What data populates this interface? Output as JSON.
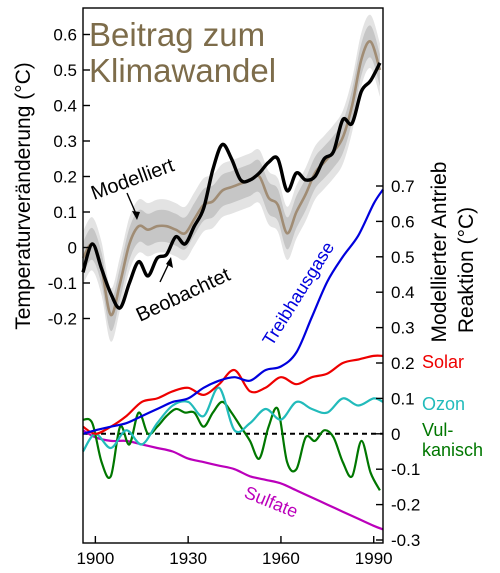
{
  "chart_data": [
    {
      "type": "line",
      "title_lines": [
        "Beitrag zum",
        "Klimawandel"
      ],
      "title_color": "#7d6c4a",
      "ylabel": "Temperaturveränderung (°C)",
      "yticks": [
        "0.6",
        "0.5",
        "0.4",
        "0.3",
        "0.2",
        "0.1",
        "0",
        "-0.1",
        "-0.2"
      ],
      "ylim": [
        -0.25,
        0.65
      ],
      "xlim": [
        1896,
        1993
      ],
      "annotations": [
        "Modelliert",
        "Beobachtet"
      ],
      "series": [
        {
          "name": "Modelliert",
          "color": "#a08c74",
          "x": [
            1896,
            1899,
            1902,
            1905,
            1908,
            1911,
            1914,
            1917,
            1920,
            1923,
            1926,
            1929,
            1932,
            1935,
            1938,
            1941,
            1944,
            1947,
            1950,
            1953,
            1956,
            1959,
            1962,
            1965,
            1968,
            1971,
            1974,
            1977,
            1980,
            1983,
            1986,
            1989,
            1992
          ],
          "y": [
            -0.03,
            0.01,
            -0.06,
            -0.19,
            -0.1,
            0.01,
            0.06,
            0.05,
            0.06,
            0.06,
            0.05,
            0.04,
            0.08,
            0.12,
            0.13,
            0.16,
            0.17,
            0.18,
            0.19,
            0.2,
            0.14,
            0.12,
            0.04,
            0.1,
            0.15,
            0.21,
            0.24,
            0.27,
            0.31,
            0.4,
            0.53,
            0.58,
            0.5
          ]
        },
        {
          "name": "Beobachtet",
          "color": "#000000",
          "x": [
            1896,
            1899,
            1902,
            1905,
            1908,
            1911,
            1914,
            1917,
            1920,
            1923,
            1926,
            1929,
            1932,
            1935,
            1938,
            1941,
            1944,
            1947,
            1950,
            1953,
            1956,
            1959,
            1962,
            1965,
            1968,
            1971,
            1974,
            1977,
            1980,
            1983,
            1986,
            1989,
            1992
          ],
          "y": [
            -0.07,
            0.01,
            -0.06,
            -0.13,
            -0.17,
            -0.1,
            -0.04,
            -0.08,
            -0.03,
            -0.02,
            0.03,
            0.01,
            0.06,
            0.11,
            0.22,
            0.29,
            0.25,
            0.19,
            0.19,
            0.21,
            0.24,
            0.25,
            0.16,
            0.21,
            0.19,
            0.2,
            0.25,
            0.27,
            0.36,
            0.35,
            0.44,
            0.47,
            0.52
          ]
        }
      ]
    },
    {
      "type": "line",
      "ylabel_lines": [
        "Modellierter Antrieb",
        "Reaktion (°C)"
      ],
      "yticks": [
        "0.7",
        "0.6",
        "0.5",
        "0.4",
        "0.3",
        "0.2",
        "0.1",
        "0",
        "-0.1",
        "-0.2",
        "-0.3"
      ],
      "ylim": [
        -0.3,
        0.72
      ],
      "xlim": [
        1896,
        1993
      ],
      "xticks": [
        "1900",
        "1930",
        "1960",
        "1990"
      ],
      "zero_line": "dashed",
      "series": [
        {
          "name": "Treibhausgase",
          "color": "#0000dd",
          "x": [
            1896,
            1900,
            1905,
            1910,
            1915,
            1920,
            1925,
            1930,
            1935,
            1940,
            1945,
            1950,
            1955,
            1960,
            1965,
            1970,
            1975,
            1980,
            1985,
            1990,
            1993
          ],
          "y": [
            0.0,
            0.01,
            0.02,
            0.03,
            0.05,
            0.07,
            0.09,
            0.1,
            0.13,
            0.15,
            0.16,
            0.15,
            0.18,
            0.19,
            0.23,
            0.33,
            0.43,
            0.5,
            0.56,
            0.65,
            0.69
          ]
        },
        {
          "name": "Solar",
          "color": "#ee0000",
          "x": [
            1896,
            1900,
            1905,
            1910,
            1915,
            1920,
            1925,
            1930,
            1935,
            1940,
            1945,
            1950,
            1955,
            1960,
            1965,
            1970,
            1975,
            1980,
            1985,
            1990,
            1993
          ],
          "y": [
            0.02,
            0.0,
            0.02,
            0.05,
            0.09,
            0.1,
            0.12,
            0.13,
            0.11,
            0.14,
            0.18,
            0.12,
            0.13,
            0.16,
            0.14,
            0.16,
            0.17,
            0.2,
            0.21,
            0.22,
            0.22
          ]
        },
        {
          "name": "Ozon",
          "color": "#22bbbb",
          "x": [
            1896,
            1900,
            1905,
            1910,
            1915,
            1920,
            1925,
            1930,
            1935,
            1940,
            1945,
            1950,
            1955,
            1960,
            1965,
            1970,
            1975,
            1980,
            1985,
            1990,
            1993
          ],
          "y": [
            -0.05,
            0.0,
            -0.04,
            0.01,
            -0.03,
            0.03,
            0.08,
            0.09,
            0.05,
            0.13,
            0.01,
            0.03,
            0.07,
            0.04,
            0.09,
            0.07,
            0.06,
            0.1,
            0.08,
            0.1,
            0.09
          ]
        },
        {
          "name": "Vulkanisch",
          "color": "#007700",
          "x": [
            1896,
            1899,
            1902,
            1905,
            1908,
            1911,
            1914,
            1917,
            1920,
            1923,
            1926,
            1929,
            1932,
            1935,
            1938,
            1941,
            1944,
            1947,
            1950,
            1953,
            1956,
            1959,
            1962,
            1965,
            1968,
            1971,
            1974,
            1977,
            1980,
            1983,
            1986,
            1989,
            1992
          ],
          "y": [
            0.04,
            0.03,
            -0.08,
            -0.12,
            0.02,
            -0.03,
            0.06,
            0.0,
            0.02,
            0.05,
            0.07,
            0.06,
            0.06,
            0.02,
            0.06,
            0.09,
            0.06,
            0.02,
            -0.02,
            -0.07,
            0.02,
            0.07,
            -0.08,
            -0.1,
            -0.01,
            -0.02,
            0.01,
            -0.01,
            -0.08,
            -0.12,
            -0.02,
            -0.11,
            -0.16
          ]
        },
        {
          "name": "Sulfate",
          "color": "#bb00bb",
          "x": [
            1896,
            1900,
            1905,
            1910,
            1915,
            1920,
            1925,
            1930,
            1935,
            1940,
            1945,
            1950,
            1955,
            1960,
            1965,
            1970,
            1975,
            1980,
            1985,
            1990,
            1993
          ],
          "y": [
            0.01,
            -0.01,
            -0.02,
            -0.02,
            -0.03,
            -0.04,
            -0.05,
            -0.07,
            -0.08,
            -0.09,
            -0.1,
            -0.12,
            -0.13,
            -0.14,
            -0.16,
            -0.18,
            -0.2,
            -0.22,
            -0.24,
            -0.26,
            -0.27
          ]
        }
      ],
      "legend_labels": [
        {
          "key": "treibhausgase",
          "lines": [
            "Treibhausgase"
          ],
          "color": "#0000dd"
        },
        {
          "key": "solar",
          "lines": [
            "Solar"
          ],
          "color": "#ee0000"
        },
        {
          "key": "ozon",
          "lines": [
            "Ozon"
          ],
          "color": "#22bbbb"
        },
        {
          "key": "vulkanisch",
          "lines": [
            "Vul-",
            "kanisch"
          ],
          "color": "#007700"
        },
        {
          "key": "sulfate",
          "lines": [
            "Sulfate"
          ],
          "color": "#bb00bb"
        }
      ]
    }
  ]
}
